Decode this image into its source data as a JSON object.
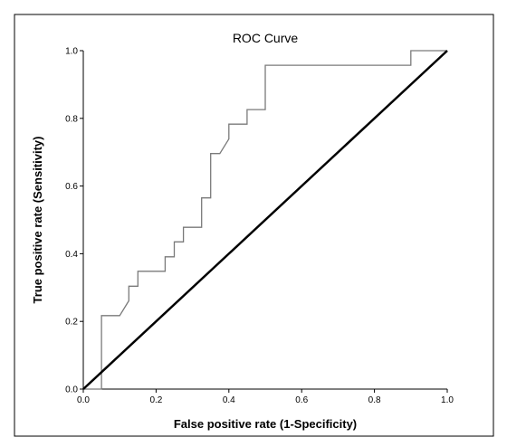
{
  "chart_data": {
    "type": "line",
    "title": "ROC Curve",
    "xlabel": "False positive rate (1-Specificity)",
    "ylabel": "True positive rate (Sensitivity)",
    "xlim": [
      0,
      1
    ],
    "ylim": [
      0,
      1
    ],
    "xticks": [
      "0.0",
      "0.2",
      "0.4",
      "0.6",
      "0.8",
      "1.0"
    ],
    "yticks": [
      "0.0",
      "0.2",
      "0.4",
      "0.6",
      "0.8",
      "1.0"
    ],
    "grid": false,
    "series": [
      {
        "style": "step",
        "color": "#7a7a7a",
        "points": [
          [
            0.0,
            0.0
          ],
          [
            0.05,
            0.0
          ],
          [
            0.05,
            0.217
          ],
          [
            0.1,
            0.217
          ],
          [
            0.125,
            0.261
          ],
          [
            0.125,
            0.304
          ],
          [
            0.15,
            0.304
          ],
          [
            0.15,
            0.348
          ],
          [
            0.225,
            0.348
          ],
          [
            0.225,
            0.391
          ],
          [
            0.25,
            0.391
          ],
          [
            0.25,
            0.435
          ],
          [
            0.275,
            0.435
          ],
          [
            0.275,
            0.478
          ],
          [
            0.325,
            0.478
          ],
          [
            0.325,
            0.565
          ],
          [
            0.35,
            0.565
          ],
          [
            0.35,
            0.696
          ],
          [
            0.375,
            0.696
          ],
          [
            0.4,
            0.739
          ],
          [
            0.4,
            0.783
          ],
          [
            0.45,
            0.783
          ],
          [
            0.45,
            0.826
          ],
          [
            0.475,
            0.826
          ],
          [
            0.5,
            0.826
          ],
          [
            0.5,
            0.957
          ],
          [
            0.9,
            0.957
          ],
          [
            0.9,
            1.0
          ],
          [
            1.0,
            1.0
          ]
        ]
      },
      {
        "style": "diagonal",
        "color": "#000000",
        "points": [
          [
            0,
            0
          ],
          [
            1,
            1
          ]
        ]
      }
    ]
  }
}
